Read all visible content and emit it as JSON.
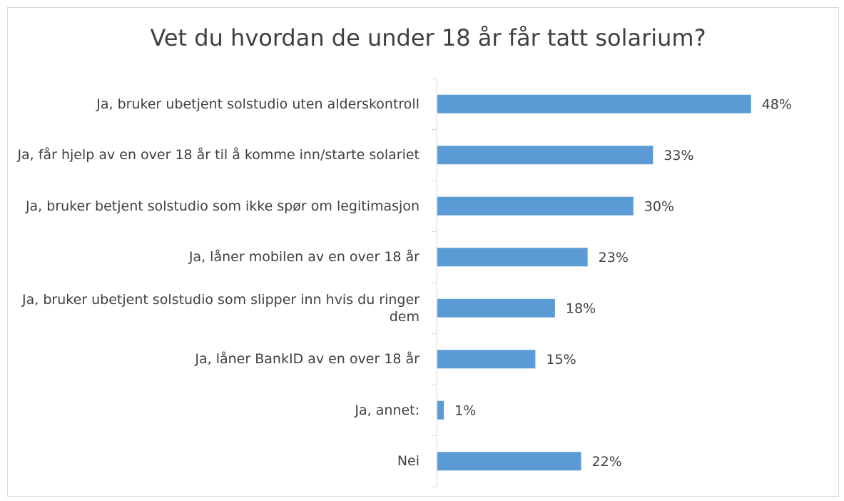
{
  "chart_data": {
    "type": "barh",
    "title": "Vet du hvordan de under 18 år får tatt solarium?",
    "categories": [
      "Ja, bruker ubetjent solstudio uten alderskontroll",
      "Ja, får hjelp av en over 18 år til å komme inn/starte solariet",
      "Ja, bruker betjent solstudio som ikke spør om legitimasjon",
      "Ja, låner mobilen av en over 18 år",
      "Ja, bruker ubetjent solstudio som slipper inn hvis du ringer dem",
      "Ja, låner BankID av en over 18 år",
      "Ja, annet:",
      "Nei"
    ],
    "values": [
      48,
      33,
      30,
      23,
      18,
      15,
      1,
      22
    ],
    "value_labels": [
      "48%",
      "33%",
      "30%",
      "23%",
      "18%",
      "15%",
      "1%",
      "22%"
    ],
    "color": "#5b9bd5",
    "xlim": [
      0,
      50
    ]
  }
}
